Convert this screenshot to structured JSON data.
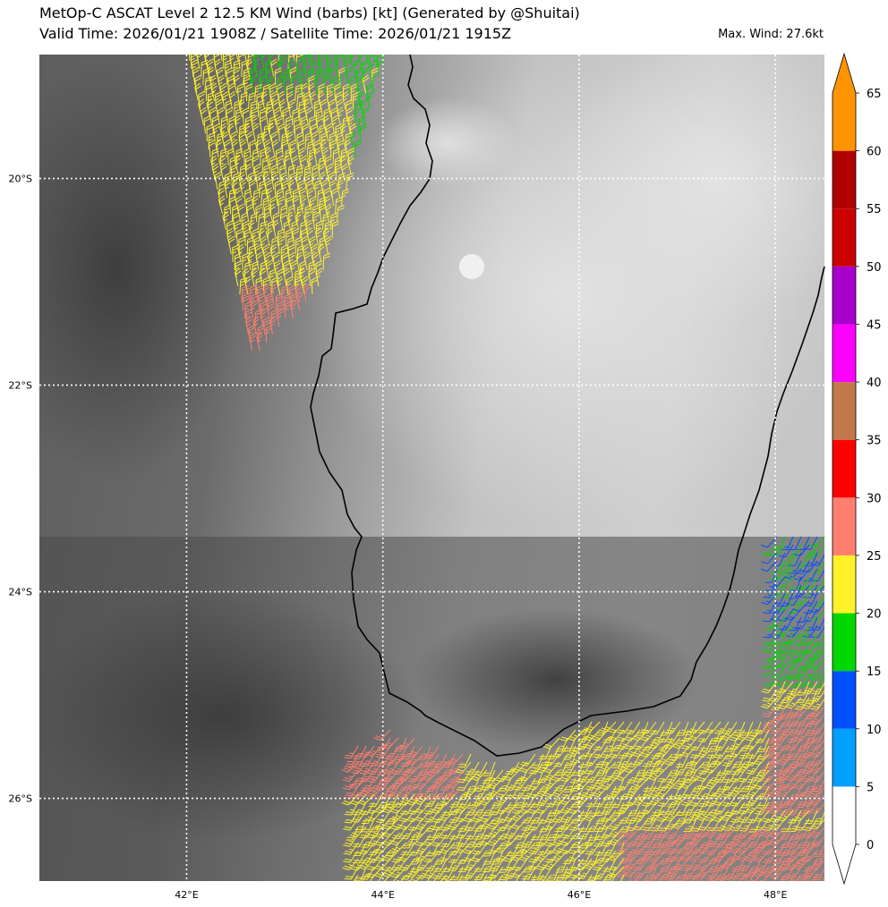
{
  "header": {
    "title_line1": "MetOp-C ASCAT Level 2 12.5 KM Wind (barbs) [kt] (Generated by @Shuitai)",
    "title_line2": "Valid Time: 2026/01/21 1908Z / Satellite Time: 2026/01/21 1915Z",
    "max_wind": "Max. Wind: 27.6kt"
  },
  "map": {
    "background": "grayscale satellite imagery",
    "lon_range": [
      40.5,
      48.5
    ],
    "lat_range": [
      -26.8,
      -18.8
    ],
    "gridlines": "dotted white",
    "lon_ticks": [
      {
        "value": 42,
        "label": "42°E"
      },
      {
        "value": 44,
        "label": "44°E"
      },
      {
        "value": 46,
        "label": "46°E"
      },
      {
        "value": 48,
        "label": "48°E"
      }
    ],
    "lat_ticks": [
      {
        "value": -20,
        "label": "20°S"
      },
      {
        "value": -22,
        "label": "22°S"
      },
      {
        "value": -24,
        "label": "24°S"
      },
      {
        "value": -26,
        "label": "26°S"
      }
    ],
    "coastline": "Madagascar (black line)",
    "wind_barb_regions": [
      {
        "area": "northwest swath",
        "lon": [
          42.0,
          44.0
        ],
        "lat": [
          -22.0,
          -18.8
        ],
        "dominant": "15-25 kt, some 25-30 kt"
      },
      {
        "area": "southeast swath",
        "lon": [
          43.6,
          48.5
        ],
        "lat": [
          -26.8,
          -23.5
        ],
        "dominant": "20-30 kt"
      }
    ]
  },
  "colorbar": {
    "colors": [
      "#ffffff",
      "#00a0ff",
      "#0050ff",
      "#00d800",
      "#fff22a",
      "#ff7f6e",
      "#ff0000",
      "#c1794c",
      "#ff00ff",
      "#a800cc",
      "#cc0000",
      "#b00000",
      "#ff9300"
    ],
    "tick_labels": [
      "0",
      "5",
      "10",
      "15",
      "20",
      "25",
      "30",
      "35",
      "40",
      "45",
      "50",
      "55",
      "60",
      "65"
    ]
  }
}
